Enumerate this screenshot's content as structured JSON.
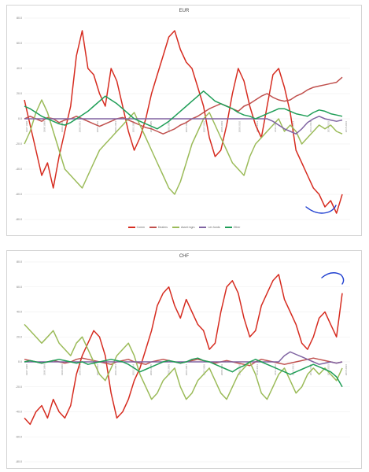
{
  "chart_data": [
    {
      "type": "line",
      "title": "EUR",
      "ylim": [
        -80,
        80
      ],
      "yticks": [
        "80.0",
        "60.0",
        "40.0",
        "20.0",
        "0.0",
        "-20.0",
        "-40.0",
        "-60.0",
        "-80.0"
      ],
      "xticks": [
        "1997 1998",
        "1998 1999",
        "1999 2000",
        "2000 2001",
        "2001 2002",
        "2002 2003",
        "2003 2004",
        "2004 2005",
        "2005 2006",
        "2006 2007",
        "2007 2008",
        "2008 2009",
        "2009 2010",
        "2010 2011",
        "2011 2012",
        "2012 2013",
        "2013 2014",
        "2014 2015",
        "2015 2016"
      ],
      "legend": [
        "Comm",
        "Dealers",
        "Asset mgrs",
        "Lev funds",
        "Other"
      ],
      "series": [
        {
          "name": "Comm",
          "color": "#d62c20",
          "values": [
            15,
            -5,
            -25,
            -45,
            -35,
            -55,
            -30,
            -10,
            10,
            50,
            70,
            40,
            35,
            20,
            10,
            40,
            30,
            10,
            -10,
            -25,
            -15,
            0,
            20,
            35,
            50,
            65,
            70,
            55,
            45,
            40,
            25,
            10,
            -15,
            -30,
            -25,
            -5,
            20,
            40,
            30,
            10,
            -5,
            -15,
            10,
            35,
            40,
            25,
            5,
            -25,
            -35,
            -45,
            -55,
            -60,
            -70,
            -65,
            -75,
            -60
          ]
        },
        {
          "name": "Dealers",
          "color": "#c0504d",
          "values": [
            0,
            2,
            0,
            -2,
            1,
            0,
            -3,
            -1,
            0,
            2,
            0,
            -2,
            -4,
            -6,
            -4,
            -2,
            0,
            1,
            -1,
            -3,
            -5,
            -7,
            -8,
            -10,
            -12,
            -10,
            -8,
            -5,
            -3,
            0,
            2,
            5,
            8,
            10,
            12,
            10,
            8,
            6,
            10,
            12,
            15,
            18,
            20,
            17,
            15,
            14,
            15,
            18,
            20,
            23,
            25,
            26,
            27,
            28,
            29,
            33
          ]
        },
        {
          "name": "Asset mgrs",
          "color": "#9bbb59",
          "values": [
            -20,
            -10,
            5,
            15,
            5,
            -10,
            -25,
            -40,
            -45,
            -50,
            -55,
            -45,
            -35,
            -25,
            -20,
            -15,
            -10,
            -5,
            0,
            5,
            -5,
            -15,
            -25,
            -35,
            -45,
            -55,
            -60,
            -50,
            -35,
            -20,
            -10,
            0,
            5,
            -5,
            -15,
            -25,
            -35,
            -40,
            -45,
            -30,
            -20,
            -15,
            -10,
            -5,
            0,
            -10,
            -5,
            -10,
            -20,
            -15,
            -10,
            -5,
            -8,
            -5,
            -10,
            -12
          ]
        },
        {
          "name": "Lev funds",
          "color": "#8064a2",
          "values": [
            0,
            0,
            0,
            0,
            0,
            0,
            0,
            0,
            0,
            0,
            0,
            0,
            0,
            0,
            0,
            0,
            0,
            0,
            0,
            0,
            0,
            0,
            0,
            0,
            0,
            0,
            0,
            0,
            0,
            0,
            0,
            0,
            0,
            0,
            0,
            0,
            0,
            0,
            0,
            0,
            0,
            0,
            0,
            -2,
            -5,
            -8,
            -10,
            -12,
            -8,
            -3,
            0,
            2,
            0,
            -1,
            -2,
            -1
          ]
        },
        {
          "name": "Other",
          "color": "#1f9e57",
          "values": [
            10,
            8,
            5,
            2,
            0,
            -2,
            -4,
            -5,
            -3,
            0,
            3,
            6,
            10,
            14,
            18,
            15,
            12,
            8,
            4,
            0,
            -2,
            -4,
            -6,
            -8,
            -5,
            -2,
            2,
            6,
            10,
            14,
            18,
            22,
            18,
            14,
            12,
            10,
            8,
            5,
            3,
            2,
            0,
            2,
            4,
            6,
            8,
            8,
            6,
            4,
            3,
            2,
            5,
            7,
            6,
            4,
            3,
            2
          ]
        }
      ]
    },
    {
      "type": "line",
      "title": "CHF",
      "ylim": [
        -80,
        80
      ],
      "yticks": [
        "80.0",
        "60.0",
        "40.0",
        "20.0",
        "0.0",
        "-20.0",
        "-40.0",
        "-60.0",
        "-80.0"
      ],
      "xticks": [
        "1997 1998",
        "1998 1999",
        "1999 2000",
        "2000 2001",
        "2001 2002",
        "2002 2003",
        "2003 2004",
        "2004 2005",
        "2005 2006",
        "2006 2007",
        "2007 2008",
        "2008 2009",
        "2009 2010",
        "2010 2011",
        "2011 2012",
        "2012 2013",
        "2013 2014",
        "2014 2015",
        "2015 2016"
      ],
      "series": [
        {
          "name": "Comm",
          "color": "#d62c20",
          "values": [
            -45,
            -50,
            -40,
            -35,
            -45,
            -30,
            -40,
            -45,
            -35,
            -10,
            5,
            15,
            25,
            20,
            5,
            -25,
            -45,
            -40,
            -30,
            -15,
            -5,
            10,
            25,
            45,
            55,
            60,
            45,
            35,
            50,
            40,
            30,
            25,
            10,
            15,
            40,
            60,
            65,
            55,
            35,
            20,
            25,
            45,
            55,
            65,
            70,
            50,
            40,
            30,
            15,
            10,
            20,
            35,
            40,
            30,
            20,
            55
          ]
        },
        {
          "name": "Dealers",
          "color": "#c0504d",
          "values": [
            2,
            1,
            0,
            -1,
            0,
            1,
            0,
            -1,
            0,
            2,
            3,
            2,
            1,
            0,
            -1,
            -2,
            0,
            1,
            2,
            0,
            -1,
            -2,
            0,
            1,
            2,
            1,
            0,
            -1,
            0,
            1,
            2,
            1,
            0,
            -1,
            0,
            1,
            0,
            -1,
            -2,
            -3,
            0,
            2,
            1,
            0,
            -1,
            -2,
            -1,
            0,
            1,
            2,
            3,
            2,
            1,
            0,
            -1,
            0
          ]
        },
        {
          "name": "Asset mgrs",
          "color": "#9bbb59",
          "values": [
            30,
            25,
            20,
            15,
            20,
            25,
            15,
            10,
            5,
            15,
            20,
            10,
            0,
            -10,
            -15,
            -5,
            5,
            10,
            15,
            5,
            -10,
            -20,
            -30,
            -25,
            -15,
            -10,
            -5,
            -20,
            -30,
            -25,
            -15,
            -10,
            -5,
            -15,
            -25,
            -30,
            -20,
            -10,
            -5,
            0,
            -10,
            -25,
            -30,
            -20,
            -10,
            -5,
            -15,
            -25,
            -20,
            -10,
            -5,
            -10,
            -5,
            -10,
            -15,
            -5
          ]
        },
        {
          "name": "Lev funds",
          "color": "#8064a2",
          "values": [
            0,
            0,
            0,
            0,
            0,
            0,
            0,
            0,
            0,
            0,
            0,
            0,
            0,
            0,
            0,
            0,
            0,
            0,
            0,
            0,
            0,
            0,
            0,
            0,
            0,
            0,
            0,
            0,
            0,
            0,
            0,
            0,
            0,
            0,
            0,
            0,
            0,
            0,
            0,
            0,
            0,
            0,
            0,
            0,
            0,
            5,
            8,
            6,
            4,
            2,
            0,
            -2,
            -1,
            0,
            -1,
            0
          ]
        },
        {
          "name": "Other",
          "color": "#1f9e57",
          "values": [
            0,
            1,
            0,
            -1,
            0,
            1,
            2,
            1,
            0,
            -1,
            0,
            -2,
            -1,
            0,
            1,
            2,
            1,
            0,
            -2,
            -5,
            -8,
            -6,
            -4,
            -2,
            0,
            1,
            0,
            -1,
            0,
            2,
            3,
            1,
            0,
            -2,
            -4,
            -6,
            -8,
            -5,
            -3,
            0,
            2,
            0,
            -2,
            -4,
            -6,
            -8,
            -10,
            -8,
            -6,
            -4,
            -2,
            -4,
            -6,
            -8,
            -12,
            -20
          ]
        }
      ]
    }
  ]
}
